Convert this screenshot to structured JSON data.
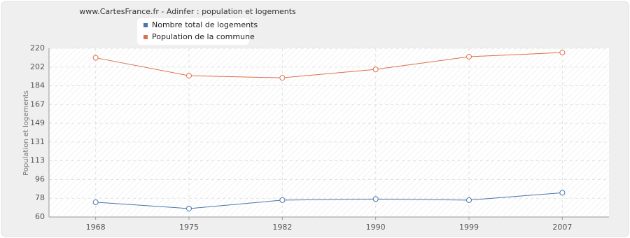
{
  "chart_data": {
    "type": "line",
    "title": "www.CartesFrance.fr - Adinfer : population et logements",
    "y_label": "Population et logements",
    "categories": [
      "1968",
      "1975",
      "1982",
      "1990",
      "1999",
      "2007"
    ],
    "series": [
      {
        "name": "Nombre total de logements",
        "color": "#4a77a8",
        "values": [
          74,
          68,
          76,
          77,
          76,
          83
        ]
      },
      {
        "name": "Population de la commune",
        "color": "#dd7048",
        "values": [
          211,
          194,
          192,
          200,
          212,
          216
        ]
      }
    ],
    "ylim": [
      60,
      220
    ],
    "yticks": [
      60,
      {
        "value": 77.78,
        "label": "78"
      },
      {
        "value": 95.56,
        "label": "96"
      },
      {
        "value": 113.33,
        "label": "113"
      },
      {
        "value": 131.11,
        "label": "131"
      },
      {
        "value": 148.89,
        "label": "149"
      },
      {
        "value": 166.67,
        "label": "167"
      },
      {
        "value": 184.44,
        "label": "184"
      },
      {
        "value": 202.22,
        "label": "202"
      },
      220
    ],
    "grid": true
  }
}
